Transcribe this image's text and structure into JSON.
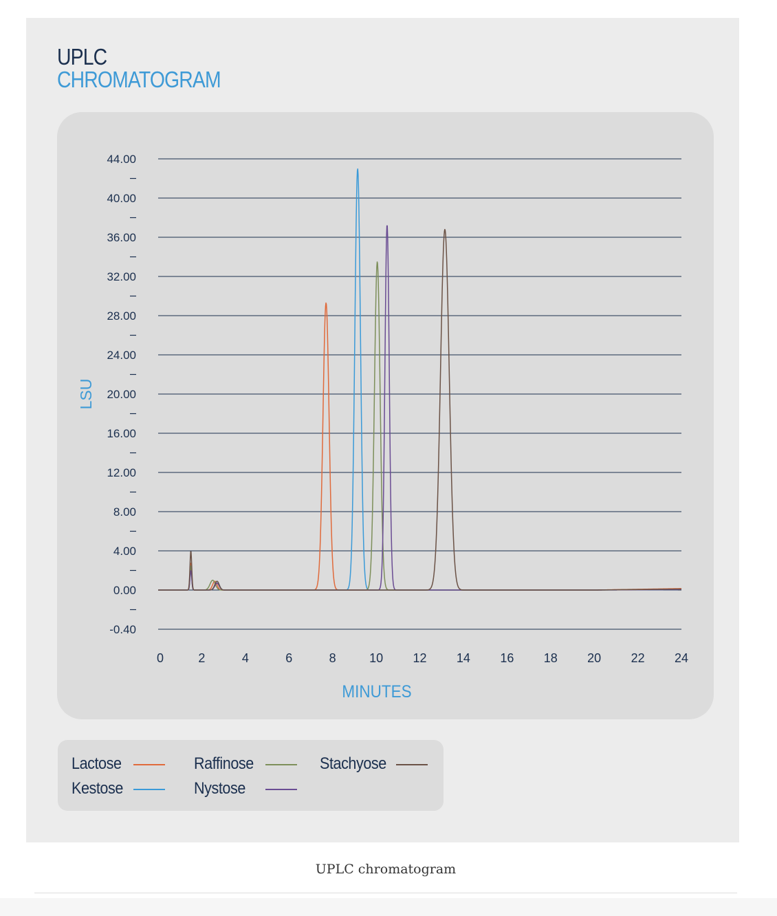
{
  "figure": {
    "title_line1": "UPLC",
    "title_line2": "CHROMATOGRAM",
    "caption": "UPLC chromatogram"
  },
  "colors": {
    "title_dark": "#1b2f4e",
    "accent_blue": "#3e9ad6",
    "figure_background": "#ececec",
    "panel_background": "#dcdcdc",
    "gridline": "#1b2f4e"
  },
  "chart_data": {
    "type": "line",
    "xlabel": "MINUTES",
    "ylabel": "LSU",
    "xlim": [
      0,
      24
    ],
    "ylim": [
      -0.4,
      44
    ],
    "x_ticks": [
      0,
      2,
      4,
      6,
      8,
      10,
      12,
      14,
      16,
      18,
      20,
      22,
      24
    ],
    "y_ticks": [
      -0.4,
      0,
      4,
      8,
      12,
      16,
      20,
      24,
      28,
      32,
      36,
      40,
      44
    ],
    "y_tick_labels": [
      "-0.40",
      "0.00",
      "4.00",
      "8.00",
      "12.00",
      "16.00",
      "20.00",
      "24.00",
      "28.00",
      "32.00",
      "36.00",
      "40.00",
      "44.00"
    ],
    "grid": true,
    "legend_placement": "bottom-left",
    "series": [
      {
        "name": "Lactose",
        "color": "#e06a3b",
        "peaks": [
          {
            "rt": 7.7,
            "height": 29.3,
            "width": 0.14
          },
          {
            "rt": 1.5,
            "height": 2.8,
            "width": 0.04
          },
          {
            "rt": 2.6,
            "height": 0.9,
            "width": 0.1
          }
        ],
        "drift_end": 0.15
      },
      {
        "name": "Kestose",
        "color": "#3a9ad8",
        "peaks": [
          {
            "rt": 9.15,
            "height": 43.0,
            "width": 0.13
          },
          {
            "rt": 1.5,
            "height": 2.2,
            "width": 0.04
          },
          {
            "rt": 2.7,
            "height": 0.9,
            "width": 0.1
          }
        ],
        "drift_end": 0.05
      },
      {
        "name": "Raffinose",
        "color": "#7d8f5a",
        "peaks": [
          {
            "rt": 10.05,
            "height": 33.5,
            "width": 0.13
          },
          {
            "rt": 1.5,
            "height": 2.5,
            "width": 0.04
          },
          {
            "rt": 2.5,
            "height": 1.0,
            "width": 0.12
          }
        ],
        "drift_end": 0.08
      },
      {
        "name": "Nystose",
        "color": "#6a4c93",
        "peaks": [
          {
            "rt": 10.5,
            "height": 37.3,
            "width": 0.1
          },
          {
            "rt": 1.5,
            "height": 2.0,
            "width": 0.04
          },
          {
            "rt": 2.7,
            "height": 0.7,
            "width": 0.1
          }
        ],
        "drift_end": 0.05
      },
      {
        "name": "Stachyose",
        "color": "#6b5246",
        "peaks": [
          {
            "rt": 13.15,
            "height": 36.8,
            "width": 0.2
          },
          {
            "rt": 1.5,
            "height": 4.0,
            "width": 0.04
          },
          {
            "rt": 2.7,
            "height": 0.9,
            "width": 0.1
          }
        ],
        "drift_end": 0.1
      }
    ]
  },
  "legend": {
    "items": [
      {
        "label": "Lactose",
        "color": "#e06a3b"
      },
      {
        "label": "Kestose",
        "color": "#3a9ad8"
      },
      {
        "label": "Raffinose",
        "color": "#7d8f5a"
      },
      {
        "label": "Nystose",
        "color": "#6a4c93"
      },
      {
        "label": "Stachyose",
        "color": "#6b5246"
      }
    ]
  }
}
